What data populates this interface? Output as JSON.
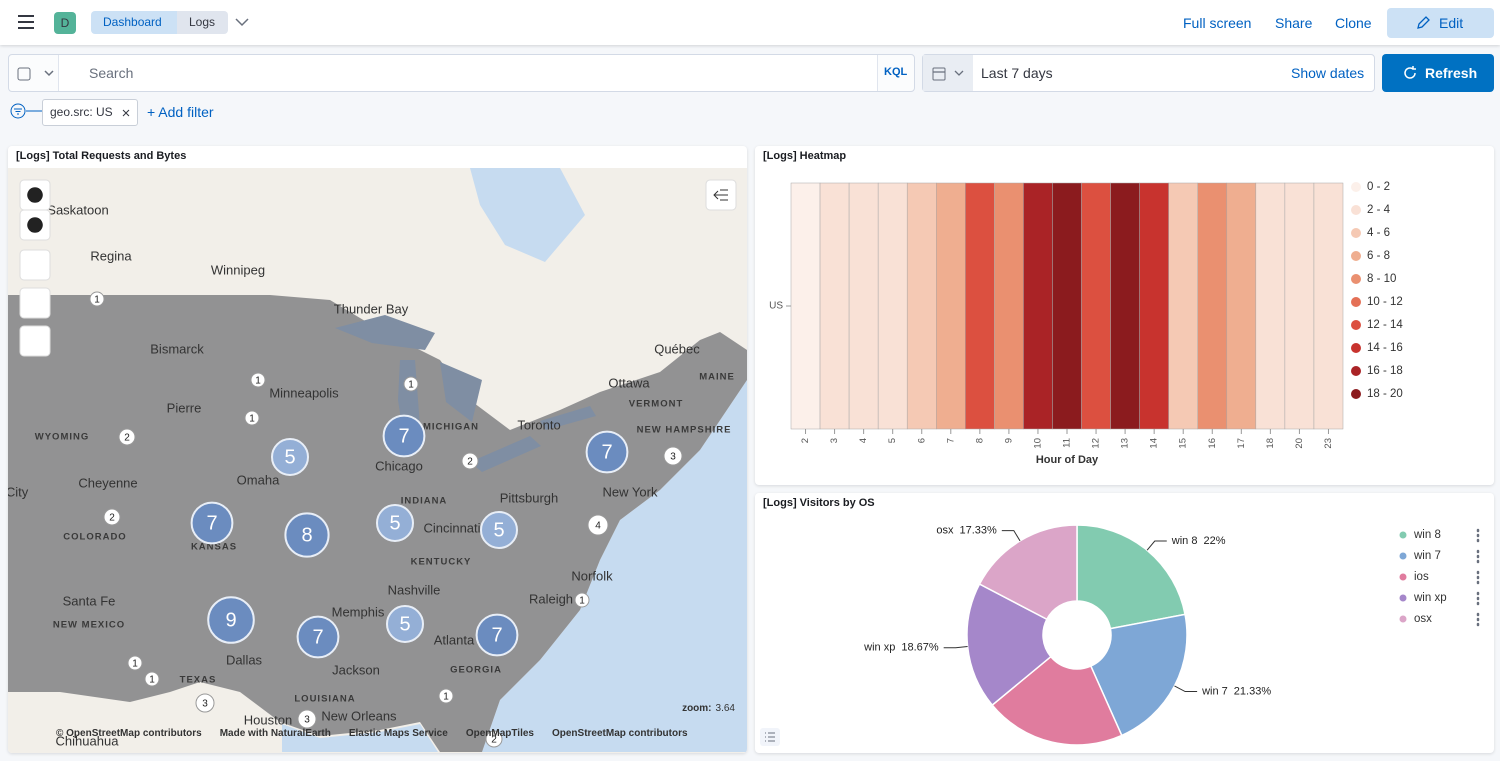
{
  "header": {
    "avatar": "D",
    "breadcrumbs": [
      "Dashboard",
      "Logs"
    ],
    "actions": [
      "Full screen",
      "Share",
      "Clone"
    ],
    "edit": "Edit"
  },
  "query": {
    "placeholder": "Search",
    "language": "KQL",
    "time": "Last 7 days",
    "show_dates": "Show dates",
    "refresh": "Refresh"
  },
  "filters": {
    "pills": [
      "geo.src: US"
    ],
    "add": "+ Add filter"
  },
  "map": {
    "title": "[Logs] Total Requests and Bytes",
    "places": [
      "Saskatoon",
      "Regina",
      "Winnipeg",
      "Thunder Bay",
      "Bismarck",
      "Minneapolis",
      "Pierre",
      "Québec",
      "Ottawa",
      "Toronto",
      "Chicago",
      "Omaha",
      "Cheyenne",
      "Pittsburgh",
      "New York",
      "Cincinnati",
      "City",
      "Nashville",
      "Norfolk",
      "Santa Fe",
      "Raleigh",
      "Memphis",
      "Atlanta",
      "Dallas",
      "Jackson",
      "Houston",
      "New Orleans",
      "Chihuahua"
    ],
    "regions": [
      "WYOMING",
      "COLORADO",
      "KANSAS",
      "NEW MEXICO",
      "TEXAS",
      "LOUISIANA",
      "GEORGIA",
      "KENTUCKY",
      "INDIANA",
      "MICHIGAN",
      "VERMONT",
      "NEW HAMPSHIRE",
      "MAINE"
    ],
    "clusters": [
      1,
      1,
      1,
      1,
      2,
      5,
      7,
      7,
      2,
      3,
      2,
      7,
      8,
      5,
      5,
      4,
      9,
      7,
      5,
      7,
      1,
      1,
      1,
      3,
      1,
      3,
      2
    ],
    "zoom_label": "zoom:",
    "zoom": 3.64,
    "attribution": [
      "© OpenStreetMap contributors",
      "Made with NaturalEarth",
      "Elastic Maps Service",
      "OpenMapTiles",
      "OpenStreetMap contributors"
    ]
  },
  "chart_data": [
    {
      "type": "heatmap",
      "title": "[Logs] Heatmap",
      "x_label": "Hour of Day",
      "y_categories": [
        "US"
      ],
      "categories": [
        "2",
        "3",
        "4",
        "5",
        "6",
        "7",
        "8",
        "9",
        "10",
        "11",
        "12",
        "13",
        "14",
        "15",
        "16",
        "17",
        "18",
        "20",
        "23"
      ],
      "values": [
        [
          1,
          3,
          3,
          3,
          5,
          7,
          13,
          9,
          17,
          19,
          13,
          19,
          15,
          5,
          9,
          7,
          3,
          3,
          3
        ]
      ],
      "legend": [
        {
          "label": "0 - 2",
          "from": 0,
          "to": 2,
          "color": "#fcf0ea"
        },
        {
          "label": "2 - 4",
          "from": 2,
          "to": 4,
          "color": "#f9e1d6"
        },
        {
          "label": "4 - 6",
          "from": 4,
          "to": 6,
          "color": "#f5c9b4"
        },
        {
          "label": "6 - 8",
          "from": 6,
          "to": 8,
          "color": "#efae90"
        },
        {
          "label": "8 - 10",
          "from": 8,
          "to": 10,
          "color": "#ea9070"
        },
        {
          "label": "10 - 12",
          "from": 10,
          "to": 12,
          "color": "#e47056"
        },
        {
          "label": "12 - 14",
          "from": 12,
          "to": 14,
          "color": "#dc5040"
        },
        {
          "label": "14 - 16",
          "from": 14,
          "to": 16,
          "color": "#c8332e"
        },
        {
          "label": "16 - 18",
          "from": 16,
          "to": 18,
          "color": "#aa2326"
        },
        {
          "label": "18 - 20",
          "from": 18,
          "to": 20,
          "color": "#8b1b1e"
        }
      ]
    },
    {
      "type": "pie",
      "title": "[Logs] Visitors by OS",
      "categories": [
        "win 8",
        "win 7",
        "ios",
        "win xp",
        "osx"
      ],
      "values": [
        22,
        21.33,
        20.67,
        18.67,
        17.33
      ],
      "value_labels": [
        "22%",
        "21.33%",
        null,
        "18.67%",
        "17.33%"
      ],
      "colors": [
        "#82cbb0",
        "#7ea7d6",
        "#e07c9e",
        "#a587ca",
        "#dba5c8"
      ],
      "donut": true
    }
  ]
}
